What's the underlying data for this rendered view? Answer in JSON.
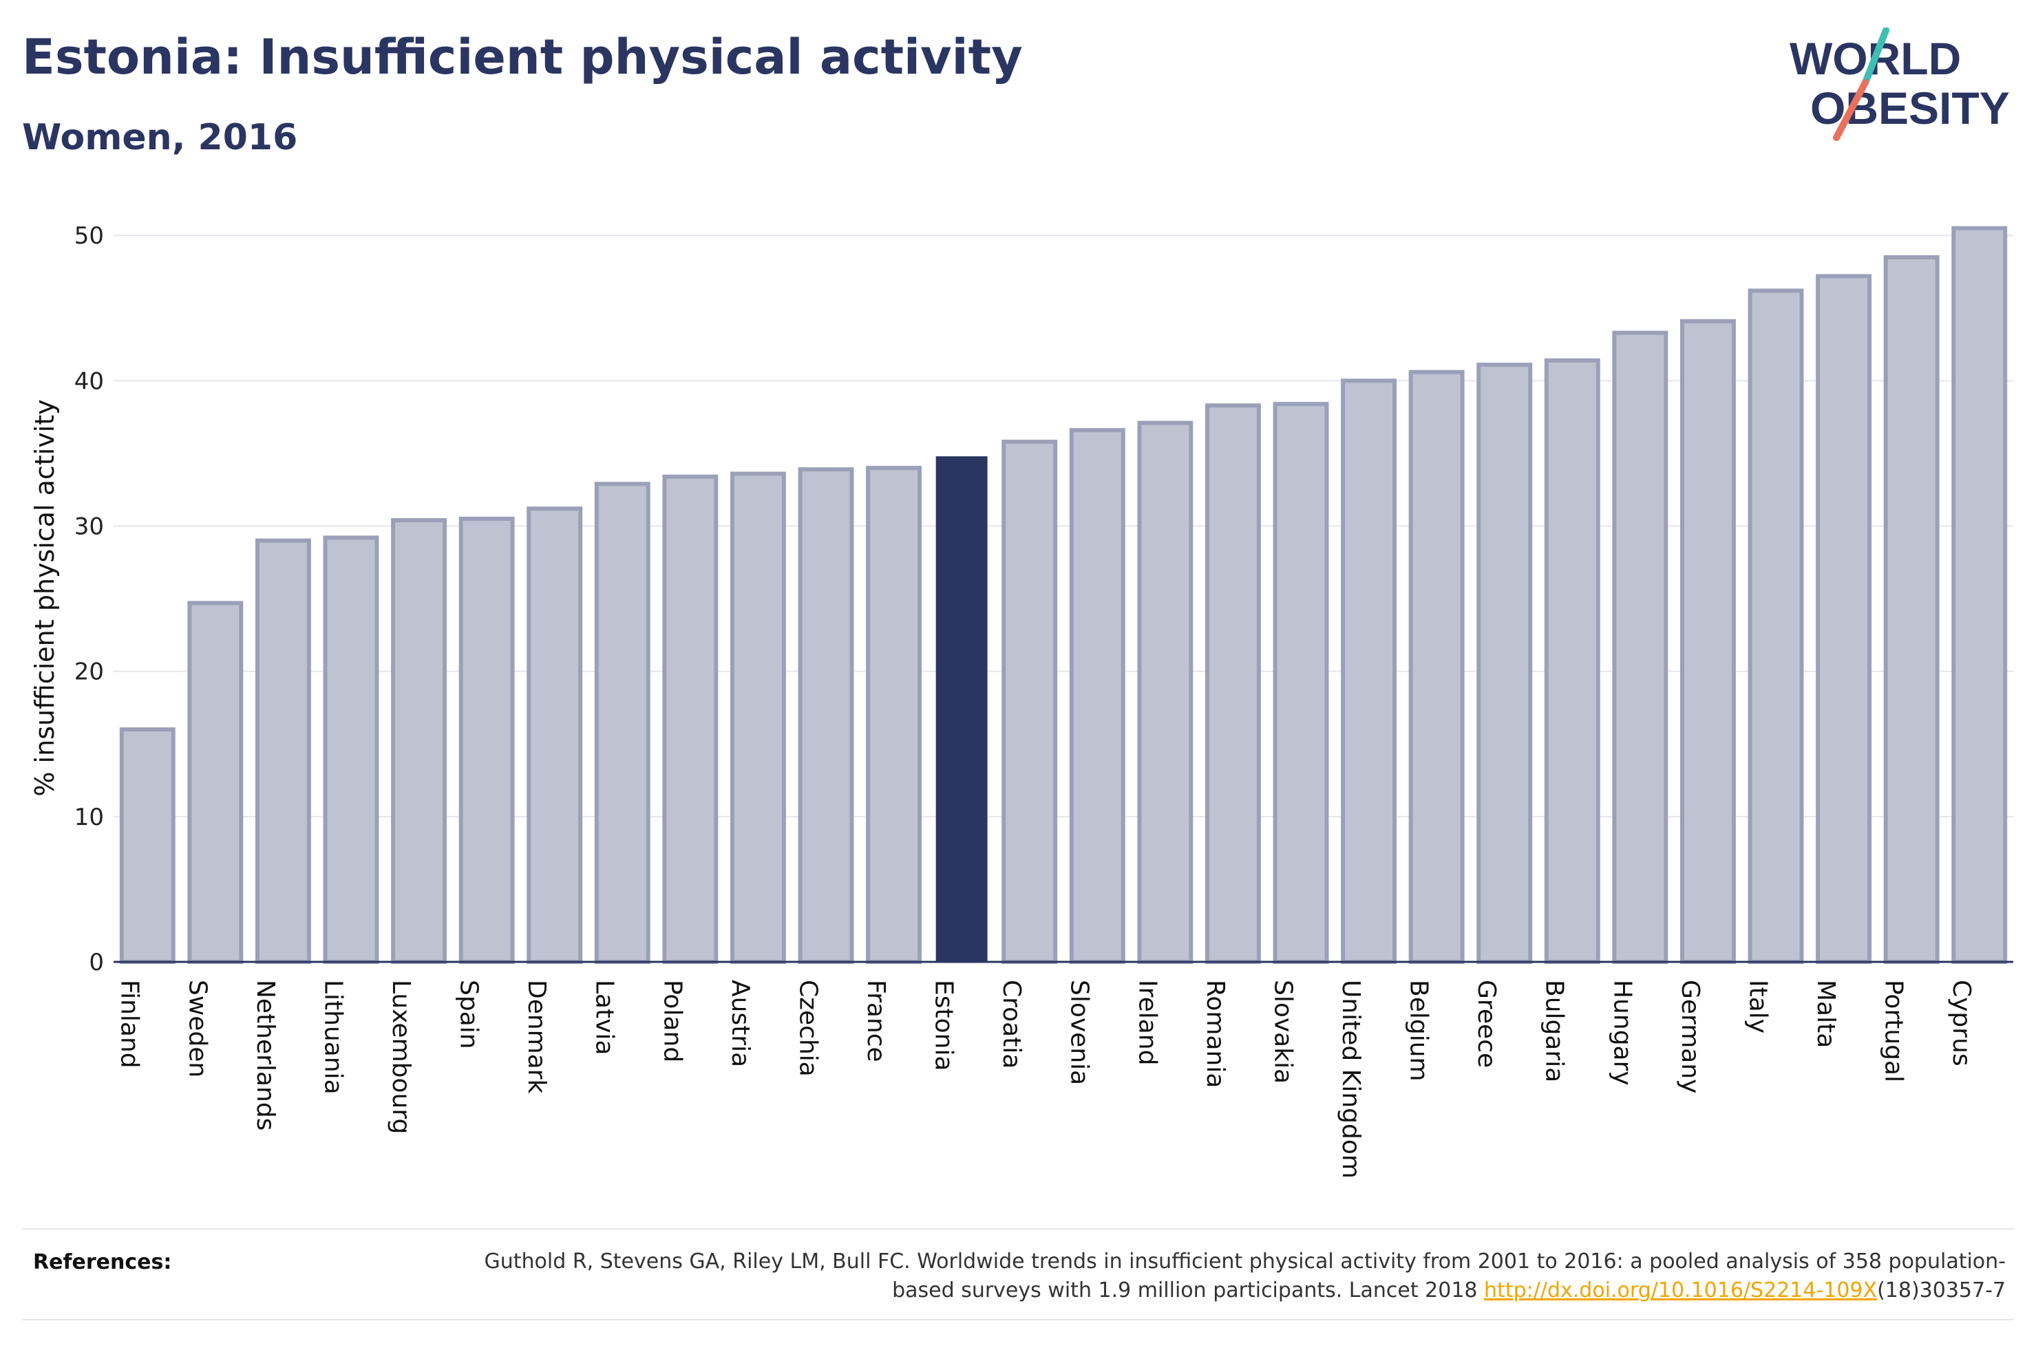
{
  "header": {
    "title": "Estonia: Insufficient physical activity",
    "subtitle": "Women, 2016"
  },
  "logo": {
    "line1": "WORLD",
    "line2": "OBESITY",
    "accent_colors": [
      "#3fbfb4",
      "#e8705c"
    ]
  },
  "colors": {
    "bar": "#bfc3d1",
    "bar_border": "#9aa0b8",
    "highlight": "#2b3561",
    "grid": "#e4e6ec",
    "axis": "#2b3561"
  },
  "chart_data": {
    "type": "bar",
    "title": "Estonia: Insufficient physical activity",
    "subtitle": "Women, 2016",
    "xlabel": "",
    "ylabel": "% insufficient physical activity",
    "ylim": [
      0,
      52
    ],
    "yticks": [
      0,
      10,
      20,
      30,
      40,
      50
    ],
    "grid": true,
    "highlight": "Estonia",
    "categories": [
      "Finland",
      "Sweden",
      "Netherlands",
      "Lithuania",
      "Luxembourg",
      "Spain",
      "Denmark",
      "Latvia",
      "Poland",
      "Austria",
      "Czechia",
      "France",
      "Estonia",
      "Croatia",
      "Slovenia",
      "Ireland",
      "Romania",
      "Slovakia",
      "United Kingdom",
      "Belgium",
      "Greece",
      "Bulgaria",
      "Hungary",
      "Germany",
      "Italy",
      "Malta",
      "Portugal",
      "Cyprus"
    ],
    "values": [
      16.0,
      24.7,
      29.0,
      29.2,
      30.4,
      30.5,
      31.2,
      32.9,
      33.4,
      33.6,
      33.9,
      34.0,
      34.8,
      35.8,
      36.6,
      37.1,
      38.3,
      38.4,
      40.0,
      40.6,
      41.1,
      41.4,
      43.3,
      44.1,
      46.2,
      47.2,
      48.5,
      50.5
    ]
  },
  "references": {
    "label": "References:",
    "text_before": "Guthold R, Stevens GA, Riley LM, Bull FC. Worldwide trends in insufficient physical activity from 2001 to 2016: a pooled analysis of 358 population-based surveys with 1.9 million participants. Lancet 2018 ",
    "link": "http://dx.doi.org/10.1016/S2214-109X",
    "text_after": "(18)30357-7"
  }
}
